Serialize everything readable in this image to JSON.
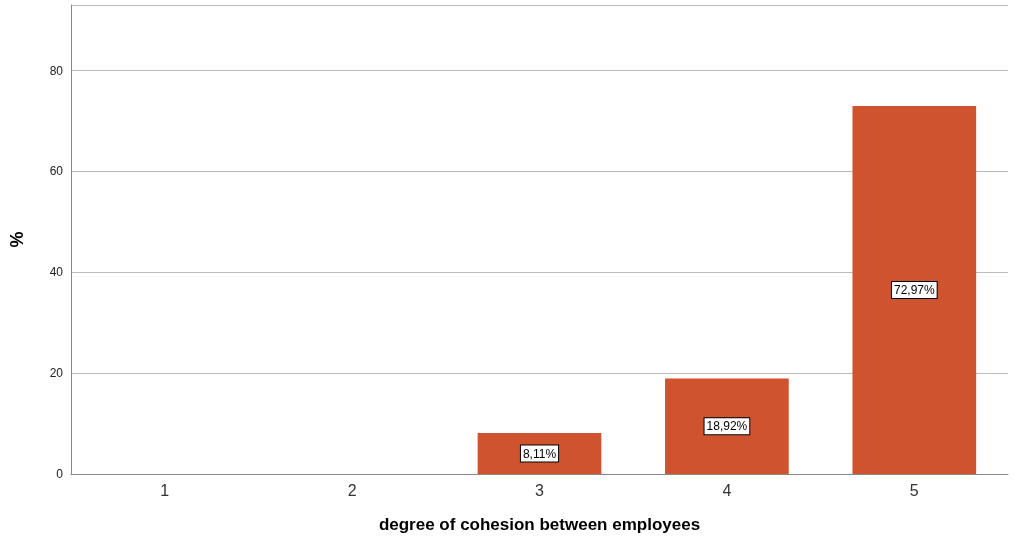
{
  "chart_data": {
    "type": "bar",
    "xlabel": "degree of cohesion between employees",
    "ylabel": "%",
    "categories": [
      "1",
      "2",
      "3",
      "4",
      "5"
    ],
    "values": [
      0,
      0,
      8.11,
      18.92,
      72.97
    ],
    "value_labels": [
      null,
      null,
      "8,11%",
      "18,92%",
      "72,97%"
    ],
    "color": "#d0532f",
    "ylim": [
      0,
      93
    ],
    "yticks": [
      0,
      20,
      40,
      60,
      80
    ],
    "grid": "y"
  }
}
